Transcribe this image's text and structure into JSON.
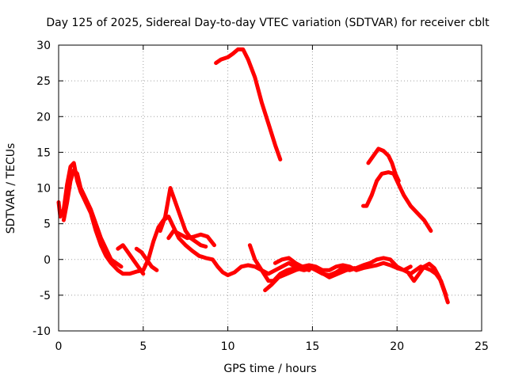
{
  "chart_data": {
    "type": "line",
    "title": "Day 125 of 2025, Sidereal Day-to-day VTEC variation (SDTVAR) for receiver cblt",
    "xlabel": "GPS time / hours",
    "ylabel": "SDTVAR / TECUs",
    "xlim": [
      0,
      25
    ],
    "ylim": [
      -10,
      30
    ],
    "xticks": [
      0,
      5,
      10,
      15,
      20,
      25
    ],
    "yticks": [
      -10,
      -5,
      0,
      5,
      10,
      15,
      20,
      25,
      30
    ],
    "grid": true,
    "color": "#ff0000",
    "series": [
      {
        "name": "trace-1",
        "points": [
          [
            0.0,
            8
          ],
          [
            0.1,
            6
          ],
          [
            0.3,
            7
          ],
          [
            0.5,
            10.5
          ],
          [
            0.7,
            13
          ],
          [
            0.9,
            13.5
          ],
          [
            1.1,
            11
          ],
          [
            1.3,
            9.5
          ],
          [
            1.6,
            8
          ],
          [
            1.9,
            6.5
          ],
          [
            2.2,
            4
          ],
          [
            2.5,
            2
          ],
          [
            2.8,
            0.5
          ],
          [
            3.1,
            -0.5
          ],
          [
            3.5,
            -1.5
          ],
          [
            3.8,
            -2
          ],
          [
            4.2,
            -2
          ],
          [
            4.6,
            -1.7
          ],
          [
            5.0,
            -1.5
          ],
          [
            5.3,
            0
          ],
          [
            5.6,
            2.5
          ],
          [
            5.9,
            4.5
          ],
          [
            6.2,
            5.5
          ],
          [
            6.5,
            6
          ],
          [
            6.8,
            4.5
          ],
          [
            7.1,
            3
          ],
          [
            7.5,
            2
          ],
          [
            7.9,
            1.2
          ],
          [
            8.3,
            0.5
          ],
          [
            8.7,
            0.2
          ],
          [
            9.1,
            0
          ],
          [
            9.4,
            -1
          ],
          [
            9.7,
            -1.8
          ],
          [
            10.0,
            -2.2
          ],
          [
            10.4,
            -1.8
          ],
          [
            10.8,
            -1
          ],
          [
            11.2,
            -0.8
          ],
          [
            11.6,
            -1
          ],
          [
            12.0,
            -1.5
          ],
          [
            12.4,
            -2
          ],
          [
            12.8,
            -1.5
          ],
          [
            13.2,
            -1
          ],
          [
            13.6,
            -0.5
          ],
          [
            14.0,
            -1
          ],
          [
            14.4,
            -1.2
          ],
          [
            14.8,
            -1
          ],
          [
            15.2,
            -1.5
          ],
          [
            15.6,
            -2
          ],
          [
            16.0,
            -2.2
          ],
          [
            16.4,
            -1.8
          ],
          [
            16.8,
            -1.2
          ],
          [
            17.2,
            -1.5
          ],
          [
            17.6,
            -1.2
          ],
          [
            18.0,
            -0.8
          ],
          [
            18.4,
            -0.5
          ],
          [
            18.8,
            0
          ],
          [
            19.2,
            0.2
          ],
          [
            19.6,
            0
          ],
          [
            20.0,
            -1
          ],
          [
            20.4,
            -1.5
          ],
          [
            20.8,
            -2
          ],
          [
            21.1,
            -1.5
          ],
          [
            21.4,
            -1
          ],
          [
            21.7,
            -1.2
          ],
          [
            22.0,
            -1.5
          ],
          [
            22.3,
            -2
          ],
          [
            22.6,
            -3
          ],
          [
            22.9,
            -5
          ]
        ]
      },
      {
        "name": "trace-2",
        "points": [
          [
            0.3,
            5.5
          ],
          [
            0.5,
            8
          ],
          [
            0.7,
            11
          ],
          [
            0.9,
            12.5
          ],
          [
            1.1,
            12
          ],
          [
            1.3,
            10
          ],
          [
            1.6,
            8.5
          ],
          [
            1.9,
            7
          ],
          [
            2.2,
            5
          ],
          [
            2.5,
            3
          ],
          [
            2.8,
            1.5
          ],
          [
            3.1,
            0
          ],
          [
            3.4,
            -0.5
          ],
          [
            3.7,
            -1
          ]
        ]
      },
      {
        "name": "trace-3",
        "points": [
          [
            3.5,
            1.5
          ],
          [
            3.8,
            2
          ],
          [
            4.1,
            1
          ],
          [
            4.4,
            0
          ],
          [
            4.7,
            -1
          ],
          [
            5.0,
            -2
          ]
        ]
      },
      {
        "name": "trace-4",
        "points": [
          [
            4.6,
            1.5
          ],
          [
            4.9,
            1
          ],
          [
            5.2,
            0
          ],
          [
            5.5,
            -1
          ],
          [
            5.8,
            -1.5
          ]
        ]
      },
      {
        "name": "trace-5",
        "points": [
          [
            6.0,
            4
          ],
          [
            6.3,
            6
          ],
          [
            6.6,
            10
          ],
          [
            6.9,
            8
          ],
          [
            7.2,
            6
          ],
          [
            7.5,
            4
          ],
          [
            7.8,
            3
          ],
          [
            8.1,
            2.5
          ],
          [
            8.4,
            2
          ],
          [
            8.7,
            1.8
          ]
        ]
      },
      {
        "name": "trace-6",
        "points": [
          [
            6.5,
            3
          ],
          [
            6.8,
            4
          ],
          [
            7.2,
            3.5
          ],
          [
            7.6,
            3
          ],
          [
            8.0,
            3.2
          ],
          [
            8.4,
            3.5
          ],
          [
            8.8,
            3.2
          ],
          [
            9.2,
            2
          ]
        ]
      },
      {
        "name": "trace-7",
        "points": [
          [
            9.3,
            27.5
          ],
          [
            9.6,
            28
          ],
          [
            10.0,
            28.3
          ],
          [
            10.3,
            28.8
          ],
          [
            10.6,
            29.4
          ],
          [
            10.9,
            29.4
          ],
          [
            11.2,
            28
          ],
          [
            11.6,
            25.5
          ],
          [
            12.0,
            22
          ],
          [
            12.4,
            19
          ],
          [
            12.8,
            16
          ],
          [
            13.1,
            14
          ]
        ]
      },
      {
        "name": "trace-8",
        "points": [
          [
            11.3,
            2
          ],
          [
            11.6,
            0
          ],
          [
            12.0,
            -1.5
          ],
          [
            12.4,
            -3
          ],
          [
            12.7,
            -3
          ],
          [
            13.1,
            -2
          ],
          [
            13.5,
            -1.5
          ],
          [
            14.0,
            -1.2
          ],
          [
            14.5,
            -1.5
          ],
          [
            15.0,
            -1.2
          ],
          [
            15.5,
            -1.8
          ],
          [
            16.0,
            -2.5
          ],
          [
            16.5,
            -2
          ],
          [
            17.0,
            -1.5
          ],
          [
            17.5,
            -1.2
          ]
        ]
      },
      {
        "name": "trace-9",
        "points": [
          [
            12.2,
            -4.3
          ],
          [
            12.6,
            -3.5
          ],
          [
            13.0,
            -2.5
          ],
          [
            13.5,
            -2
          ],
          [
            14.0,
            -1.5
          ],
          [
            14.4,
            -1.2
          ],
          [
            14.8,
            -1.5
          ]
        ]
      },
      {
        "name": "trace-10",
        "points": [
          [
            12.8,
            -0.5
          ],
          [
            13.2,
            0
          ],
          [
            13.6,
            0.2
          ],
          [
            14.0,
            -0.5
          ],
          [
            14.4,
            -1
          ],
          [
            14.8,
            -0.8
          ],
          [
            15.2,
            -1
          ],
          [
            15.6,
            -1.5
          ],
          [
            16.0,
            -1.5
          ],
          [
            16.4,
            -1
          ],
          [
            16.8,
            -0.8
          ],
          [
            17.2,
            -1
          ],
          [
            17.6,
            -1.5
          ],
          [
            18.0,
            -1.2
          ],
          [
            18.4,
            -1
          ],
          [
            18.8,
            -0.8
          ],
          [
            19.2,
            -0.5
          ],
          [
            19.6,
            -0.8
          ],
          [
            20.0,
            -1.2
          ],
          [
            20.4,
            -1.5
          ],
          [
            20.8,
            -1
          ]
        ]
      },
      {
        "name": "trace-11",
        "points": [
          [
            18.0,
            7.5
          ],
          [
            18.2,
            7.5
          ],
          [
            18.5,
            9
          ],
          [
            18.8,
            11
          ],
          [
            19.1,
            12
          ],
          [
            19.5,
            12.2
          ],
          [
            19.8,
            12
          ],
          [
            20.1,
            10.5
          ],
          [
            20.4,
            9
          ],
          [
            20.8,
            7.5
          ],
          [
            21.2,
            6.5
          ],
          [
            21.6,
            5.5
          ],
          [
            22.0,
            4
          ]
        ]
      },
      {
        "name": "trace-12",
        "points": [
          [
            18.3,
            13.5
          ],
          [
            18.6,
            14.5
          ],
          [
            18.9,
            15.5
          ],
          [
            19.2,
            15.2
          ],
          [
            19.5,
            14.5
          ],
          [
            19.7,
            13.5
          ],
          [
            19.9,
            12
          ],
          [
            20.1,
            11
          ]
        ]
      },
      {
        "name": "trace-13",
        "points": [
          [
            20.7,
            -2
          ],
          [
            21.0,
            -3
          ],
          [
            21.3,
            -2
          ],
          [
            21.6,
            -1
          ],
          [
            21.9,
            -0.6
          ],
          [
            22.2,
            -1.2
          ],
          [
            22.5,
            -2.5
          ],
          [
            22.8,
            -4.5
          ],
          [
            23.0,
            -6
          ]
        ]
      }
    ]
  }
}
